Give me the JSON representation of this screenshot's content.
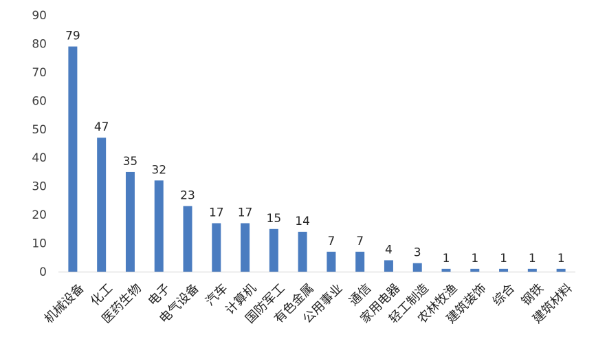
{
  "chart_data": {
    "type": "bar",
    "title": "",
    "xlabel": "",
    "ylabel": "",
    "ylim": [
      0,
      90
    ],
    "yticks": [
      0,
      10,
      20,
      30,
      40,
      50,
      60,
      70,
      80,
      90
    ],
    "grid": false,
    "legend": "none",
    "bar_color": "#4a7cc0",
    "categories": [
      "机械设备",
      "化工",
      "医药生物",
      "电子",
      "电气设备",
      "汽车",
      "计算机",
      "国防军工",
      "有色金属",
      "公用事业",
      "通信",
      "家用电器",
      "轻工制造",
      "农林牧渔",
      "建筑装饰",
      "综合",
      "钢铁",
      "建筑材料"
    ],
    "values": [
      79,
      47,
      35,
      32,
      23,
      17,
      17,
      15,
      14,
      7,
      7,
      4,
      3,
      1,
      1,
      1,
      1,
      1
    ]
  }
}
